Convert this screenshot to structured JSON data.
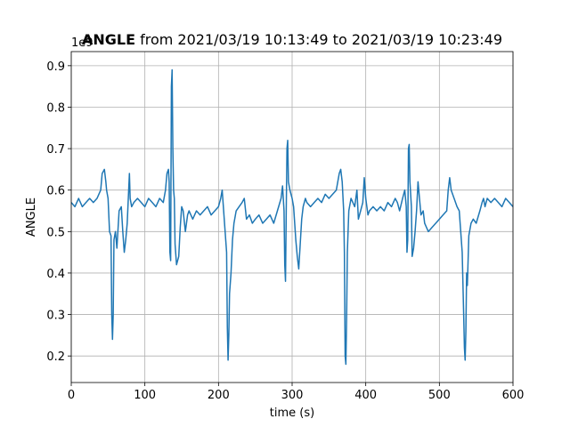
{
  "chart_data": {
    "type": "line",
    "title_bold": "ANGLE",
    "title": "from 2021/03/19 10:13:49 to 2021/03/19 10:23:49",
    "x_label": "time (s)",
    "y_label": "ANGLE",
    "y_offset_label": "1e9",
    "xlim": [
      0,
      600
    ],
    "ylim": [
      0.136,
      0.934
    ],
    "xticks": [
      0,
      100,
      200,
      300,
      400,
      500,
      600
    ],
    "yticks": [
      0.2,
      0.3,
      0.4,
      0.5,
      0.6,
      0.7,
      0.8,
      0.9
    ],
    "grid": true,
    "series": [
      {
        "color": "#1f77b4",
        "x": [
          0,
          5,
          10,
          15,
          20,
          25,
          30,
          35,
          40,
          42,
          45,
          47,
          48,
          50,
          52,
          54,
          55,
          56,
          57,
          58,
          60,
          62,
          65,
          68,
          70,
          72,
          74,
          76,
          78,
          79,
          80,
          82,
          85,
          90,
          95,
          100,
          105,
          110,
          115,
          120,
          125,
          128,
          130,
          132,
          133,
          134,
          135,
          136,
          137,
          138,
          139,
          140,
          141,
          143,
          146,
          148,
          150,
          152,
          155,
          158,
          160,
          165,
          170,
          175,
          180,
          185,
          190,
          195,
          200,
          203,
          205,
          207,
          209,
          211,
          212,
          213,
          214,
          215,
          217,
          219,
          221,
          224,
          228,
          232,
          235,
          238,
          242,
          246,
          250,
          255,
          260,
          265,
          270,
          275,
          280,
          285,
          287,
          289,
          290,
          291,
          292,
          293,
          294,
          295,
          297,
          300,
          302,
          305,
          307,
          309,
          311,
          313,
          315,
          318,
          320,
          325,
          330,
          335,
          340,
          345,
          350,
          355,
          360,
          364,
          366,
          368,
          370,
          371,
          372,
          373,
          374,
          375,
          377,
          380,
          385,
          388,
          390,
          393,
          396,
          398,
          400,
          403,
          405,
          410,
          415,
          420,
          425,
          430,
          435,
          440,
          443,
          446,
          450,
          453,
          455,
          456,
          457,
          458,
          459,
          460,
          462,
          463,
          465,
          467,
          469,
          471,
          473,
          475,
          478,
          480,
          485,
          490,
          495,
          500,
          505,
          510,
          512,
          514,
          516,
          520,
          524,
          527,
          529,
          531,
          533,
          534,
          535,
          536,
          537,
          538,
          540,
          543,
          546,
          550,
          555,
          558,
          560,
          562,
          565,
          570,
          575,
          580,
          585,
          590,
          595,
          600
        ],
        "values": [
          0.57,
          0.56,
          0.58,
          0.56,
          0.57,
          0.58,
          0.57,
          0.58,
          0.6,
          0.64,
          0.65,
          0.62,
          0.6,
          0.58,
          0.5,
          0.49,
          0.3,
          0.24,
          0.3,
          0.48,
          0.5,
          0.46,
          0.55,
          0.56,
          0.5,
          0.45,
          0.48,
          0.52,
          0.6,
          0.64,
          0.58,
          0.56,
          0.57,
          0.58,
          0.57,
          0.56,
          0.58,
          0.57,
          0.56,
          0.58,
          0.57,
          0.6,
          0.64,
          0.65,
          0.62,
          0.45,
          0.43,
          0.85,
          0.89,
          0.7,
          0.6,
          0.58,
          0.47,
          0.42,
          0.44,
          0.51,
          0.56,
          0.55,
          0.5,
          0.54,
          0.55,
          0.53,
          0.55,
          0.54,
          0.55,
          0.56,
          0.54,
          0.55,
          0.56,
          0.58,
          0.6,
          0.55,
          0.5,
          0.45,
          0.27,
          0.19,
          0.25,
          0.35,
          0.4,
          0.48,
          0.52,
          0.55,
          0.56,
          0.57,
          0.58,
          0.53,
          0.54,
          0.52,
          0.53,
          0.54,
          0.52,
          0.53,
          0.54,
          0.52,
          0.55,
          0.58,
          0.61,
          0.55,
          0.42,
          0.38,
          0.55,
          0.7,
          0.72,
          0.62,
          0.6,
          0.58,
          0.56,
          0.48,
          0.44,
          0.41,
          0.47,
          0.53,
          0.56,
          0.58,
          0.57,
          0.56,
          0.57,
          0.58,
          0.57,
          0.59,
          0.58,
          0.59,
          0.6,
          0.64,
          0.65,
          0.62,
          0.55,
          0.45,
          0.2,
          0.18,
          0.29,
          0.45,
          0.55,
          0.58,
          0.56,
          0.6,
          0.53,
          0.55,
          0.57,
          0.63,
          0.58,
          0.54,
          0.55,
          0.56,
          0.55,
          0.56,
          0.55,
          0.57,
          0.56,
          0.58,
          0.57,
          0.55,
          0.58,
          0.6,
          0.56,
          0.45,
          0.48,
          0.7,
          0.71,
          0.62,
          0.56,
          0.44,
          0.46,
          0.5,
          0.55,
          0.62,
          0.58,
          0.54,
          0.55,
          0.52,
          0.5,
          0.51,
          0.52,
          0.53,
          0.54,
          0.55,
          0.6,
          0.63,
          0.6,
          0.58,
          0.56,
          0.55,
          0.5,
          0.45,
          0.3,
          0.22,
          0.19,
          0.26,
          0.4,
          0.37,
          0.49,
          0.52,
          0.53,
          0.52,
          0.55,
          0.57,
          0.58,
          0.56,
          0.58,
          0.57,
          0.58,
          0.57,
          0.56,
          0.58,
          0.57,
          0.56
        ]
      }
    ]
  }
}
